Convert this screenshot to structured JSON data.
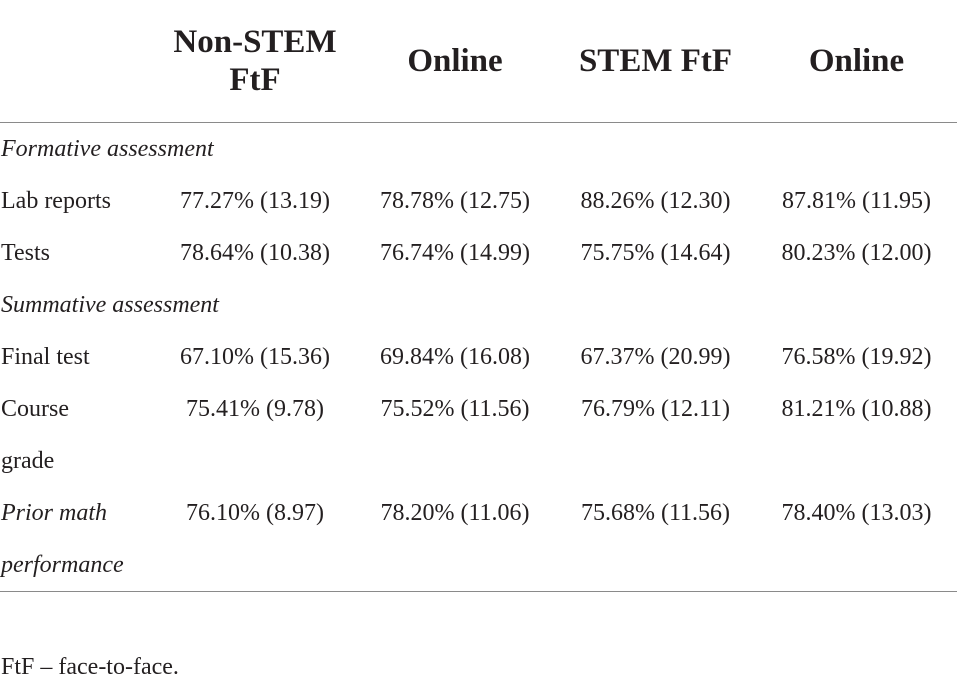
{
  "table": {
    "headers": [
      "",
      "Non-STEM\nFtF",
      "Online",
      "STEM FtF",
      "Online"
    ],
    "sections": [
      {
        "title": "Formative assessment",
        "rows": [
          {
            "label": [
              "Lab reports"
            ],
            "italic_label": false,
            "values": [
              "77.27% (13.19)",
              "78.78% (12.75)",
              "88.26% (12.30)",
              "87.81% (11.95)"
            ]
          },
          {
            "label": [
              "Tests"
            ],
            "italic_label": false,
            "values": [
              "78.64% (10.38)",
              "76.74% (14.99)",
              "75.75% (14.64)",
              "80.23% (12.00)"
            ]
          }
        ]
      },
      {
        "title": "Summative assessment",
        "rows": [
          {
            "label": [
              "Final test"
            ],
            "italic_label": false,
            "values": [
              "67.10% (15.36)",
              "69.84% (16.08)",
              "67.37% (20.99)",
              "76.58% (19.92)"
            ]
          },
          {
            "label": [
              "Course",
              "grade"
            ],
            "italic_label": false,
            "values": [
              "75.41% (9.78)",
              "75.52% (11.56)",
              "76.79% (12.11)",
              "81.21% (10.88)"
            ]
          }
        ]
      },
      {
        "title": "",
        "rows": [
          {
            "label": [
              "Prior math",
              "performance"
            ],
            "italic_label": true,
            "values": [
              "76.10% (8.97)",
              "78.20% (11.06)",
              "75.68% (11.56)",
              "78.40% (13.03)"
            ]
          }
        ]
      }
    ]
  },
  "footnote": "FtF – face-to-face."
}
